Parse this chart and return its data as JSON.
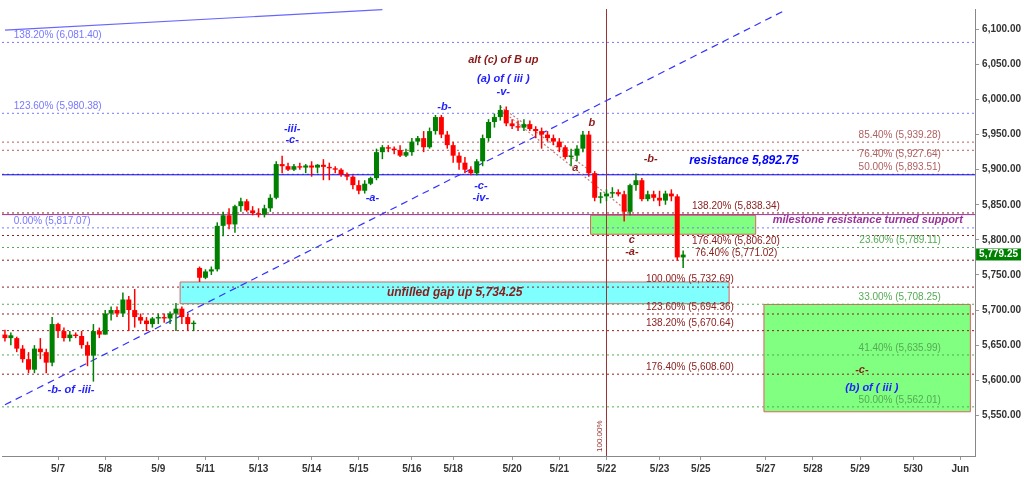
{
  "chart_data": {
    "type": "candlestick",
    "categories": [
      null,
      null,
      null,
      null,
      null,
      null,
      null,
      null,
      null,
      "5/7",
      null,
      null,
      null,
      null,
      null,
      null,
      null,
      "5/8",
      null,
      null,
      null,
      null,
      null,
      null,
      null,
      null,
      "5/9",
      null,
      null,
      null,
      null,
      null,
      null,
      null,
      "5/11",
      null,
      null,
      null,
      null,
      null,
      null,
      null,
      null,
      "5/13",
      null,
      null,
      null,
      null,
      null,
      null,
      null,
      null,
      "5/14",
      null,
      null,
      null,
      null,
      null,
      null,
      null,
      "5/15",
      null,
      null,
      null,
      null,
      null,
      null,
      null,
      null,
      "5/16",
      null,
      null,
      null,
      null,
      null,
      null,
      "5/18",
      null,
      null,
      null,
      null,
      null,
      null,
      null,
      null,
      null,
      "5/20",
      null,
      null,
      null,
      null,
      null,
      null,
      null,
      "5/21",
      null,
      null,
      null,
      null,
      null,
      null,
      null,
      "5/22",
      null,
      null,
      null,
      null,
      null,
      null,
      null,
      null,
      "5/23",
      null,
      null,
      null,
      null,
      null,
      null,
      "5/25",
      null,
      null,
      null,
      null,
      null,
      null,
      null,
      null,
      null,
      null,
      "5/27",
      null,
      null,
      null,
      null,
      null,
      null,
      null,
      "5/28",
      null,
      null,
      null,
      null,
      null,
      null,
      null,
      "5/29",
      null,
      null,
      null,
      null,
      null,
      null,
      null,
      null,
      "5/30",
      null,
      null,
      null,
      null,
      null,
      null,
      null,
      "Jun",
      null,
      null
    ],
    "ohlc": [
      [
        5665,
        5672,
        5655,
        5660
      ],
      [
        5660,
        5668,
        5650,
        5664
      ],
      [
        5660,
        5662,
        5640,
        5645
      ],
      [
        5645,
        5650,
        5625,
        5630
      ],
      [
        5630,
        5640,
        5610,
        5615
      ],
      [
        5615,
        5650,
        5610,
        5645
      ],
      [
        5645,
        5660,
        5630,
        5640
      ],
      [
        5640,
        5645,
        5610,
        5625
      ],
      [
        5625,
        5690,
        5620,
        5680
      ],
      [
        5680,
        5682,
        5660,
        5670
      ],
      [
        5670,
        5675,
        5655,
        5660
      ],
      [
        5660,
        5670,
        5655,
        5665
      ],
      [
        5665,
        5668,
        5660,
        5663
      ],
      [
        5663,
        5670,
        5645,
        5650
      ],
      [
        5650,
        5655,
        5620,
        5635
      ],
      [
        5635,
        5680,
        5598,
        5670
      ],
      [
        5670,
        5675,
        5660,
        5665
      ],
      [
        5665,
        5700,
        5665,
        5695
      ],
      [
        5695,
        5705,
        5685,
        5700
      ],
      [
        5700,
        5705,
        5690,
        5695
      ],
      [
        5695,
        5725,
        5690,
        5715
      ],
      [
        5715,
        5720,
        5670,
        5700
      ],
      [
        5700,
        5730,
        5675,
        5690
      ],
      [
        5690,
        5695,
        5680,
        5685
      ],
      [
        5685,
        5690,
        5670,
        5680
      ],
      [
        5680,
        5690,
        5675,
        5688
      ],
      [
        5688,
        5695,
        5680,
        5690
      ],
      [
        5690,
        5695,
        5682,
        5688
      ],
      [
        5688,
        5698,
        5680,
        5695
      ],
      [
        5695,
        5710,
        5670,
        5702
      ],
      [
        5702,
        5705,
        5680,
        5690
      ],
      [
        5690,
        5695,
        5670,
        5680
      ],
      [
        5680,
        5685,
        5670,
        5682
      ],
      [
        5760,
        5762,
        5740,
        5746
      ],
      [
        5746,
        5758,
        5744,
        5755
      ],
      [
        5755,
        5762,
        5750,
        5758
      ],
      [
        5758,
        5825,
        5755,
        5820
      ],
      [
        5820,
        5840,
        5805,
        5835
      ],
      [
        5835,
        5845,
        5815,
        5822
      ],
      [
        5822,
        5850,
        5810,
        5848
      ],
      [
        5848,
        5860,
        5840,
        5855
      ],
      [
        5855,
        5858,
        5840,
        5842
      ],
      [
        5842,
        5848,
        5835,
        5838
      ],
      [
        5838,
        5845,
        5832,
        5836
      ],
      [
        5836,
        5850,
        5832,
        5845
      ],
      [
        5845,
        5865,
        5840,
        5860
      ],
      [
        5860,
        5912,
        5858,
        5908
      ],
      [
        5908,
        5920,
        5895,
        5905
      ],
      [
        5905,
        5910,
        5898,
        5900
      ],
      [
        5900,
        5908,
        5898,
        5905
      ],
      [
        5905,
        5910,
        5900,
        5903
      ],
      [
        5903,
        5908,
        5895,
        5906
      ],
      [
        5906,
        5912,
        5890,
        5903
      ],
      [
        5903,
        5908,
        5895,
        5907
      ],
      [
        5907,
        5915,
        5885,
        5904
      ],
      [
        5904,
        5910,
        5885,
        5902
      ],
      [
        5902,
        5905,
        5895,
        5900
      ],
      [
        5900,
        5902,
        5890,
        5893
      ],
      [
        5893,
        5896,
        5885,
        5890
      ],
      [
        5890,
        5892,
        5872,
        5878
      ],
      [
        5878,
        5885,
        5865,
        5870
      ],
      [
        5870,
        5885,
        5866,
        5880
      ],
      [
        5880,
        5890,
        5878,
        5888
      ],
      [
        5888,
        5930,
        5885,
        5925
      ],
      [
        5925,
        5935,
        5915,
        5932
      ],
      [
        5932,
        5935,
        5925,
        5930
      ],
      [
        5930,
        5933,
        5922,
        5928
      ],
      [
        5928,
        5935,
        5918,
        5920
      ],
      [
        5920,
        5930,
        5918,
        5925
      ],
      [
        5925,
        5945,
        5920,
        5940
      ],
      [
        5940,
        5948,
        5935,
        5945
      ],
      [
        5945,
        5955,
        5925,
        5932
      ],
      [
        5932,
        5960,
        5930,
        5955
      ],
      [
        5955,
        5978,
        5950,
        5975
      ],
      [
        5975,
        5978,
        5945,
        5950
      ],
      [
        5950,
        5955,
        5930,
        5935
      ],
      [
        5935,
        5940,
        5910,
        5920
      ],
      [
        5920,
        5925,
        5900,
        5910
      ],
      [
        5910,
        5918,
        5895,
        5900
      ],
      [
        5900,
        5905,
        5892,
        5895
      ],
      [
        5895,
        5915,
        5892,
        5912
      ],
      [
        5912,
        5950,
        5905,
        5945
      ],
      [
        5945,
        5972,
        5940,
        5968
      ],
      [
        5968,
        5980,
        5960,
        5975
      ],
      [
        5975,
        5992,
        5970,
        5985
      ],
      [
        5985,
        5990,
        5962,
        5966
      ],
      [
        5966,
        5972,
        5958,
        5962
      ],
      [
        5962,
        5970,
        5955,
        5960
      ],
      [
        5960,
        5972,
        5955,
        5965
      ],
      [
        5965,
        5970,
        5955,
        5958
      ],
      [
        5958,
        5962,
        5945,
        5955
      ],
      [
        5955,
        5960,
        5930,
        5950
      ],
      [
        5950,
        5955,
        5940,
        5945
      ],
      [
        5945,
        5950,
        5935,
        5940
      ],
      [
        5940,
        5945,
        5925,
        5932
      ],
      [
        5932,
        5935,
        5915,
        5918
      ],
      [
        5918,
        5930,
        5905,
        5920
      ],
      [
        5920,
        5935,
        5912,
        5930
      ],
      [
        5930,
        5955,
        5925,
        5950
      ],
      [
        5950,
        5955,
        5890,
        5895
      ],
      [
        5895,
        5898,
        5855,
        5860
      ],
      [
        5860,
        5868,
        5852,
        5862
      ],
      [
        5862,
        5872,
        5855,
        5866
      ],
      [
        5866,
        5875,
        5860,
        5868
      ],
      [
        5868,
        5872,
        5862,
        5865
      ],
      [
        5865,
        5870,
        5826,
        5840
      ],
      [
        5840,
        5880,
        5835,
        5878
      ],
      [
        5878,
        5895,
        5870,
        5885
      ],
      [
        5885,
        5888,
        5855,
        5858
      ],
      [
        5858,
        5870,
        5855,
        5865
      ],
      [
        5865,
        5870,
        5855,
        5860
      ],
      [
        5860,
        5870,
        5848,
        5856
      ],
      [
        5856,
        5870,
        5850,
        5866
      ],
      [
        5866,
        5872,
        5855,
        5862
      ],
      [
        5862,
        5865,
        5770,
        5775
      ],
      [
        5775,
        5785,
        5760,
        5779
      ],
      null,
      null,
      null,
      null,
      null,
      null,
      null,
      null,
      null,
      null,
      null,
      null,
      null,
      null,
      null,
      null,
      null,
      null,
      null,
      null,
      null,
      null,
      null,
      null,
      null,
      null,
      null,
      null,
      null,
      null,
      null,
      null,
      null,
      null,
      null,
      null,
      null,
      null,
      null,
      null,
      null,
      null,
      null,
      null,
      null,
      null,
      null,
      null,
      null
    ],
    "colors": [
      "#ff0000",
      "#008000",
      "#ff0000",
      "#ff0000",
      "#ff0000",
      "#008000",
      "#ff0000",
      "#ff0000",
      "#008000",
      "#ff0000",
      "#ff0000",
      "#008000",
      "#ff0000",
      "#ff0000",
      "#ff0000",
      "#008000",
      "#ff0000",
      "#008000",
      "#008000",
      "#ff0000",
      "#008000",
      "#ff0000",
      "#ff0000",
      "#ff0000",
      "#ff0000",
      "#008000",
      "#008000",
      "#ff0000",
      "#008000",
      "#008000",
      "#ff0000",
      "#ff0000",
      "#008000",
      "#ff0000",
      "#008000",
      "#008000",
      "#008000",
      "#008000",
      "#ff0000",
      "#008000",
      "#008000",
      "#ff0000",
      "#ff0000",
      "#ff0000",
      "#008000",
      "#008000",
      "#008000",
      "#ff0000",
      "#ff0000",
      "#008000",
      "#ff0000",
      "#008000",
      "#ff0000",
      "#008000",
      "#ff0000",
      "#ff0000",
      "#ff0000",
      "#ff0000",
      "#ff0000",
      "#ff0000",
      "#ff0000",
      "#008000",
      "#008000",
      "#008000",
      "#008000",
      "#ff0000",
      "#ff0000",
      "#ff0000",
      "#008000",
      "#008000",
      "#008000",
      "#ff0000",
      "#008000",
      "#008000",
      "#ff0000",
      "#ff0000",
      "#ff0000",
      "#ff0000",
      "#ff0000",
      "#ff0000",
      "#008000",
      "#008000",
      "#008000",
      "#008000",
      "#008000",
      "#ff0000",
      "#ff0000",
      "#ff0000",
      "#008000",
      "#ff0000",
      "#ff0000",
      "#ff0000",
      "#ff0000",
      "#ff0000",
      "#ff0000",
      "#ff0000",
      "#008000",
      "#008000",
      "#008000",
      "#ff0000",
      "#ff0000",
      "#008000",
      "#008000",
      "#008000",
      "#ff0000",
      "#ff0000",
      "#008000",
      "#008000",
      "#ff0000",
      "#008000",
      "#ff0000",
      "#ff0000",
      "#008000",
      "#ff0000",
      "#ff0000",
      "#008000",
      null,
      null,
      null,
      null,
      null,
      null,
      null,
      null,
      null,
      null,
      null,
      null,
      null,
      null,
      null,
      null,
      null,
      null,
      null,
      null,
      null,
      null,
      null,
      null,
      null,
      null,
      null,
      null,
      null,
      null,
      null,
      null,
      null,
      null,
      null,
      null,
      null,
      null,
      null,
      null,
      null,
      null,
      null,
      null,
      null,
      null,
      null,
      null,
      null
    ],
    "series": [
      {
        "type": "line",
        "color": "#3333ff",
        "line_style": "dashed",
        "values": [
          5565,
          null,
          null,
          null,
          null,
          null,
          null,
          null,
          null,
          null,
          null,
          null,
          null,
          null,
          null,
          null,
          null,
          null,
          null,
          null,
          null,
          null,
          null,
          null,
          null,
          null,
          null,
          null,
          null,
          null,
          null,
          null,
          null,
          null,
          null,
          null,
          null,
          null,
          null,
          null,
          null,
          null,
          null,
          null,
          null,
          null,
          null,
          null,
          null,
          null,
          null,
          null,
          null,
          null,
          null,
          null,
          null,
          null,
          null,
          null,
          null,
          null,
          null,
          null,
          null,
          null,
          null,
          null,
          null,
          null,
          null,
          null,
          null,
          null,
          null,
          null,
          null,
          null,
          null,
          null,
          null,
          null,
          null,
          null,
          null,
          null,
          null,
          null,
          null,
          null,
          null,
          null,
          null,
          null,
          null,
          null,
          null,
          null,
          null,
          null,
          null,
          null,
          null,
          null,
          null,
          null,
          null,
          null,
          null,
          null,
          null,
          null,
          null,
          null,
          null,
          null,
          null,
          null,
          null,
          null,
          null,
          null,
          null,
          null,
          null,
          null,
          null,
          null,
          null,
          null,
          null,
          null,
          6126,
          null,
          null,
          null,
          null,
          null,
          null,
          null,
          null,
          null,
          null,
          null,
          null,
          null,
          null,
          null,
          null,
          null,
          null,
          null,
          null,
          null,
          null,
          null,
          null,
          null,
          null,
          null,
          null,
          null,
          null,
          null,
          null
        ]
      },
      {
        "type": "line",
        "color": "#6666ff",
        "line_style": "solid",
        "values": [
          6099,
          null,
          null,
          null,
          null,
          null,
          null,
          null,
          null,
          null,
          null,
          null,
          null,
          null,
          null,
          null,
          null,
          null,
          null,
          null,
          null,
          null,
          null,
          null,
          null,
          null,
          null,
          null,
          null,
          null,
          null,
          null,
          null,
          null,
          null,
          null,
          null,
          null,
          null,
          null,
          null,
          null,
          null,
          null,
          null,
          null,
          null,
          null,
          null,
          null,
          null,
          null,
          null,
          null,
          null,
          null,
          null,
          null,
          null,
          null,
          null,
          null,
          null,
          null,
          6128,
          null,
          null,
          null,
          null,
          null,
          null,
          null,
          null,
          null,
          null,
          null,
          null,
          null,
          null,
          null,
          null,
          null,
          null,
          null,
          null,
          null,
          null,
          null,
          null,
          null,
          null,
          null,
          null,
          null,
          null,
          null,
          null,
          null,
          null,
          null,
          null,
          null,
          null,
          null,
          null,
          null,
          null,
          null,
          null,
          null,
          null,
          null,
          null,
          null,
          null,
          null,
          null,
          null,
          null,
          null,
          null,
          null,
          null,
          null,
          null,
          null,
          null,
          null,
          null,
          null,
          null,
          null,
          null,
          null,
          null,
          null,
          null,
          null,
          null,
          null,
          null,
          null,
          null,
          null,
          null,
          null,
          null,
          null,
          null,
          null,
          null,
          null,
          null,
          null,
          null,
          null,
          null,
          null,
          null,
          null,
          null,
          null,
          null,
          null,
          null
        ]
      },
      {
        "type": "line",
        "color": "#c08080",
        "line_style": "dotted",
        "values": [
          null,
          null,
          null,
          null,
          null,
          null,
          null,
          null,
          null,
          null,
          null,
          null,
          null,
          null,
          null,
          null,
          null,
          null,
          null,
          null,
          null,
          null,
          null,
          null,
          null,
          null,
          null,
          null,
          null,
          null,
          null,
          null,
          null,
          null,
          null,
          null,
          null,
          null,
          null,
          null,
          null,
          null,
          null,
          null,
          null,
          null,
          null,
          null,
          null,
          null,
          null,
          null,
          null,
          null,
          null,
          null,
          null,
          null,
          null,
          null,
          null,
          null,
          null,
          null,
          null,
          null,
          null,
          null,
          null,
          null,
          null,
          null,
          null,
          null,
          null,
          null,
          null,
          null,
          null,
          null,
          null,
          null,
          null,
          null,
          5990,
          null,
          null,
          null,
          null,
          null,
          null,
          null,
          null,
          null,
          null,
          null,
          null,
          null,
          null,
          5900,
          null,
          null,
          null,
          null,
          null,
          null,
          null,
          null,
          null,
          null,
          null,
          null,
          null,
          null,
          null,
          null,
          null,
          null,
          null,
          null,
          null,
          null,
          null,
          null,
          null,
          null,
          null,
          null,
          null,
          null,
          null,
          null,
          null,
          null,
          null,
          null,
          null,
          null,
          null,
          null,
          null,
          null,
          null,
          null,
          null,
          null,
          null,
          null,
          null,
          null,
          null,
          null,
          null,
          null,
          null,
          null,
          null,
          null,
          null,
          null,
          null,
          null,
          null,
          null,
          null
        ]
      },
      {
        "type": "line",
        "color": "#c08080",
        "line_style": "dotted",
        "values": [
          null,
          null,
          null,
          null,
          null,
          null,
          null,
          null,
          null,
          null,
          null,
          null,
          null,
          null,
          null,
          null,
          null,
          null,
          null,
          null,
          null,
          null,
          null,
          null,
          null,
          null,
          null,
          null,
          null,
          null,
          null,
          null,
          null,
          null,
          null,
          null,
          null,
          null,
          null,
          null,
          null,
          null,
          null,
          null,
          null,
          null,
          null,
          null,
          null,
          null,
          null,
          null,
          null,
          null,
          null,
          null,
          null,
          null,
          null,
          null,
          null,
          null,
          null,
          null,
          null,
          null,
          null,
          null,
          null,
          null,
          null,
          null,
          null,
          null,
          null,
          null,
          null,
          null,
          null,
          null,
          null,
          null,
          null,
          null,
          5986,
          null,
          null,
          null,
          null,
          null,
          null,
          null,
          null,
          null,
          null,
          null,
          null,
          null,
          null,
          null,
          null,
          null,
          null,
          null,
          null,
          null,
          5838,
          null,
          null,
          null,
          null,
          null,
          null,
          null,
          null,
          null,
          null,
          null,
          null,
          null,
          null,
          null,
          null,
          null,
          null,
          null,
          null,
          null,
          null,
          null,
          null,
          null,
          null,
          null,
          null,
          null,
          null,
          null,
          null,
          null,
          null,
          null,
          null,
          null,
          null,
          null,
          null,
          null,
          null,
          null,
          null,
          null,
          null,
          null,
          null,
          null,
          null,
          null,
          null,
          null,
          null,
          null,
          null,
          null,
          null
        ]
      }
    ],
    "ylim": [
      5492,
      6129
    ],
    "yticks": [
      {
        "value": 5550,
        "label": "5,550.00"
      },
      {
        "value": 5600,
        "label": "5,600.00"
      },
      {
        "value": 5650,
        "label": "5,650.00"
      },
      {
        "value": 5700,
        "label": "5,700.00"
      },
      {
        "value": 5750,
        "label": "5,750.00"
      },
      {
        "value": 5800,
        "label": "5,800.00"
      },
      {
        "value": 5850,
        "label": "5,850.00"
      },
      {
        "value": 5900,
        "label": "5,900.00"
      },
      {
        "value": 5950,
        "label": "5,950.00"
      },
      {
        "value": 6000,
        "label": "6,000.00"
      },
      {
        "value": 6050,
        "label": "6,050.00"
      },
      {
        "value": 6100,
        "label": "6,100.00"
      }
    ],
    "bands": [
      {
        "axis": "y",
        "from": 5709,
        "to": 5740,
        "label": "unfilled gap up 5,734.25",
        "color": "#80ffff"
      },
      {
        "axis": "y",
        "from": 5808,
        "to": 5835,
        "color": "#80ff80"
      },
      {
        "axis": "y",
        "from": 5555,
        "to": 5708,
        "color": "#80ff80"
      }
    ],
    "ref_lines": [
      {
        "axis": "y",
        "value": 6081.4,
        "label": "138.20% (6,081.40)",
        "color": "#7777ff",
        "line_style": "dotted"
      },
      {
        "axis": "y",
        "value": 5980.38,
        "label": "123.60% (5,980.38)",
        "color": "#7777ff",
        "line_style": "dotted"
      },
      {
        "axis": "y",
        "value": 5817.07,
        "label": "0.00% (5,817.07)",
        "color": "#7777ff",
        "line_style": "dotted"
      },
      {
        "axis": "y",
        "value": 5939.28,
        "label": "85.40% (5,939.28)",
        "color": "#b06060",
        "line_style": "dotted"
      },
      {
        "axis": "y",
        "value": 5927.64,
        "label": "76.40% (5,927.64)",
        "color": "#b06060",
        "line_style": "dotted"
      },
      {
        "axis": "y",
        "value": 5893.51,
        "label": "50.00% (5,893.51)",
        "color": "#b06060",
        "line_style": "dotted"
      },
      {
        "axis": "y",
        "value": 5838.34,
        "label": "138.20% (5,838.34)",
        "color": "#8b2020",
        "line_style": "dotted"
      },
      {
        "axis": "y",
        "value": 5806.2,
        "label": "176.40% (5,806.20)",
        "color": "#8b2020",
        "line_style": "dotted"
      },
      {
        "axis": "y",
        "value": 5771.02,
        "label": "76.40% (5,771.02)",
        "color": "#8b2020",
        "line_style": "dotted"
      },
      {
        "axis": "y",
        "value": 5732.69,
        "label": "100.00% (5,732.69)",
        "color": "#8b2020",
        "line_style": "dotted"
      },
      {
        "axis": "y",
        "value": 5694.36,
        "label": "123.60% (5,694.36)",
        "color": "#8b2020",
        "line_style": "dotted"
      },
      {
        "axis": "y",
        "value": 5670.64,
        "label": "138.20% (5,670.64)",
        "color": "#8b2020",
        "line_style": "dotted"
      },
      {
        "axis": "y",
        "value": 5608.6,
        "label": "176.40% (5,608.60)",
        "color": "#8b2020",
        "line_style": "dotted"
      },
      {
        "axis": "y",
        "value": 5789.11,
        "label": "23.60% (5,789.11)",
        "color": "#55aa55",
        "line_style": "dotted"
      },
      {
        "axis": "y",
        "value": 5708.25,
        "label": "33.00% (5,708.25)",
        "color": "#55aa55",
        "line_style": "dotted"
      },
      {
        "axis": "y",
        "value": 5635.99,
        "label": "41.40% (5,635.99)",
        "color": "#55aa55",
        "line_style": "dotted"
      },
      {
        "axis": "y",
        "value": 5562.01,
        "label": "50.00% (5,562.01)",
        "color": "#55aa55",
        "line_style": "dotted"
      },
      {
        "axis": "y",
        "value": 5892.75,
        "label": "resistance 5,892.75",
        "color": "#0000ff",
        "line_style": "solid"
      },
      {
        "axis": "y",
        "value": 5836,
        "label": "milestone resistance turned support",
        "color": "#993399",
        "line_style": "solid"
      },
      {
        "axis": "x",
        "value": "5/22",
        "label": "100.00%",
        "color": "#993333",
        "line_style": "solid"
      }
    ],
    "annotations": [
      "alt (c) of B up",
      "(a) of ( iii )",
      "-v-",
      "-iii-",
      "-c-",
      "-b-",
      "-a-",
      "-c-",
      "-iv-",
      "b",
      "a",
      "-b-",
      "c",
      "-a-",
      "-c-",
      "(b) of ( iii )",
      "-b- of -iii-",
      "5,779.25"
    ]
  }
}
